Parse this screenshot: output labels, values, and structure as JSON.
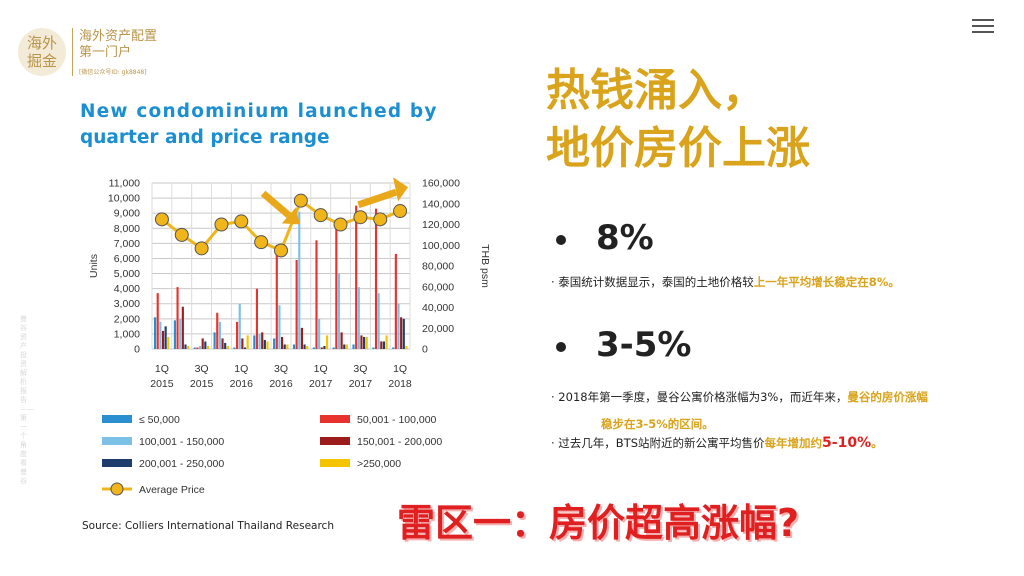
{
  "logo": {
    "circle_line1": "海外",
    "circle_line2": "掘金",
    "title_line1": "海外资产配置",
    "title_line2": "第一门户",
    "subtitle": "[微信公众号ID: gk8848]"
  },
  "side_text": "曼谷资产投资解析报告——第一个角度看曼谷",
  "headline": {
    "line1": "热钱涌入，",
    "line2": "地价房价上涨"
  },
  "bullets": [
    {
      "value": "8%"
    },
    {
      "value": "3-5%"
    }
  ],
  "text": {
    "p1_pre": "· 泰国统计数据显示，泰国的土地价格较",
    "p1_hl": "上一年平均增长稳定在8%。",
    "p2_pre": "· 2018年第一季度，曼谷公寓价格涨幅为3%，而近年来，",
    "p2_hl": "曼谷的房价涨幅",
    "p2_line2": "稳步在3-5%的区间。",
    "p3_pre": "· 过去几年，BTS站附近的新公寓平均售价",
    "p3_hl": "每年增加约",
    "p3_red": "5-10%",
    "p3_end": "。"
  },
  "question": "雷区一：房价超高涨幅?",
  "chart_data": {
    "type": "bar",
    "title_line1": "New condominium launched by",
    "title_line2": "quarter and price range",
    "ylabel": "Units",
    "y2label": "THB psm",
    "ylim": [
      0,
      11000
    ],
    "y2lim": [
      0,
      160000
    ],
    "yticks": [
      "0",
      "1,000",
      "2,000",
      "3,000",
      "4,000",
      "5,000",
      "6,000",
      "7,000",
      "8,000",
      "9,000",
      "10,000",
      "11,000"
    ],
    "y2ticks": [
      "0",
      "20,000",
      "40,000",
      "60,000",
      "80,000",
      "100,000",
      "120,000",
      "140,000",
      "160,000"
    ],
    "categories": [
      "1Q15",
      "2Q15",
      "3Q15",
      "4Q15",
      "1Q16",
      "2Q16",
      "3Q16",
      "4Q16",
      "1Q17",
      "2Q17",
      "3Q17",
      "4Q17",
      "1Q18"
    ],
    "xtick_labels": [
      {
        "q": "1Q",
        "y": "2015"
      },
      {
        "q": "3Q",
        "y": "2015"
      },
      {
        "q": "1Q",
        "y": "2016"
      },
      {
        "q": "3Q",
        "y": "2016"
      },
      {
        "q": "1Q",
        "y": "2017"
      },
      {
        "q": "3Q",
        "y": "2017"
      },
      {
        "q": "1Q",
        "y": "2018"
      }
    ],
    "series": [
      {
        "name": "≤ 50,000",
        "color": "#2a8fd0",
        "values": [
          2100,
          1900,
          100,
          1100,
          100,
          900,
          700,
          300,
          100,
          100,
          300,
          100,
          100
        ]
      },
      {
        "name": "50,001 - 100,000",
        "color": "#e8322d",
        "values": [
          3700,
          4100,
          100,
          2400,
          1800,
          4000,
          6900,
          5900,
          7200,
          8000,
          9500,
          9300,
          6300
        ]
      },
      {
        "name": "100,001 - 150,000",
        "color": "#7cc0e8",
        "values": [
          1800,
          2000,
          200,
          1800,
          3000,
          1000,
          2900,
          9100,
          2000,
          5000,
          4100,
          3700,
          3000
        ]
      },
      {
        "name": "150,001 - 200,000",
        "color": "#9c1c1c",
        "values": [
          1200,
          2800,
          700,
          700,
          700,
          1100,
          800,
          1400,
          100,
          1100,
          900,
          500,
          2100
        ]
      },
      {
        "name": "200,001 - 250,000",
        "color": "#1e3c6e",
        "values": [
          1500,
          300,
          500,
          400,
          100,
          600,
          300,
          300,
          200,
          300,
          800,
          500,
          2000
        ]
      },
      {
        "name": ">250,000",
        "color": "#f5c400",
        "values": [
          800,
          200,
          200,
          200,
          900,
          500,
          300,
          200,
          900,
          300,
          800,
          900,
          200
        ]
      }
    ],
    "line_series": {
      "name": "Average Price",
      "color": "#f0b51a",
      "values": [
        125000,
        110000,
        97000,
        120000,
        123000,
        103000,
        95000,
        143000,
        129000,
        120000,
        127000,
        125000,
        133000
      ]
    },
    "annotations": [
      "down-arrow",
      "up-arrow"
    ],
    "source": "Source: Colliers International Thailand Research",
    "grid": true,
    "legend_position": "bottom"
  }
}
